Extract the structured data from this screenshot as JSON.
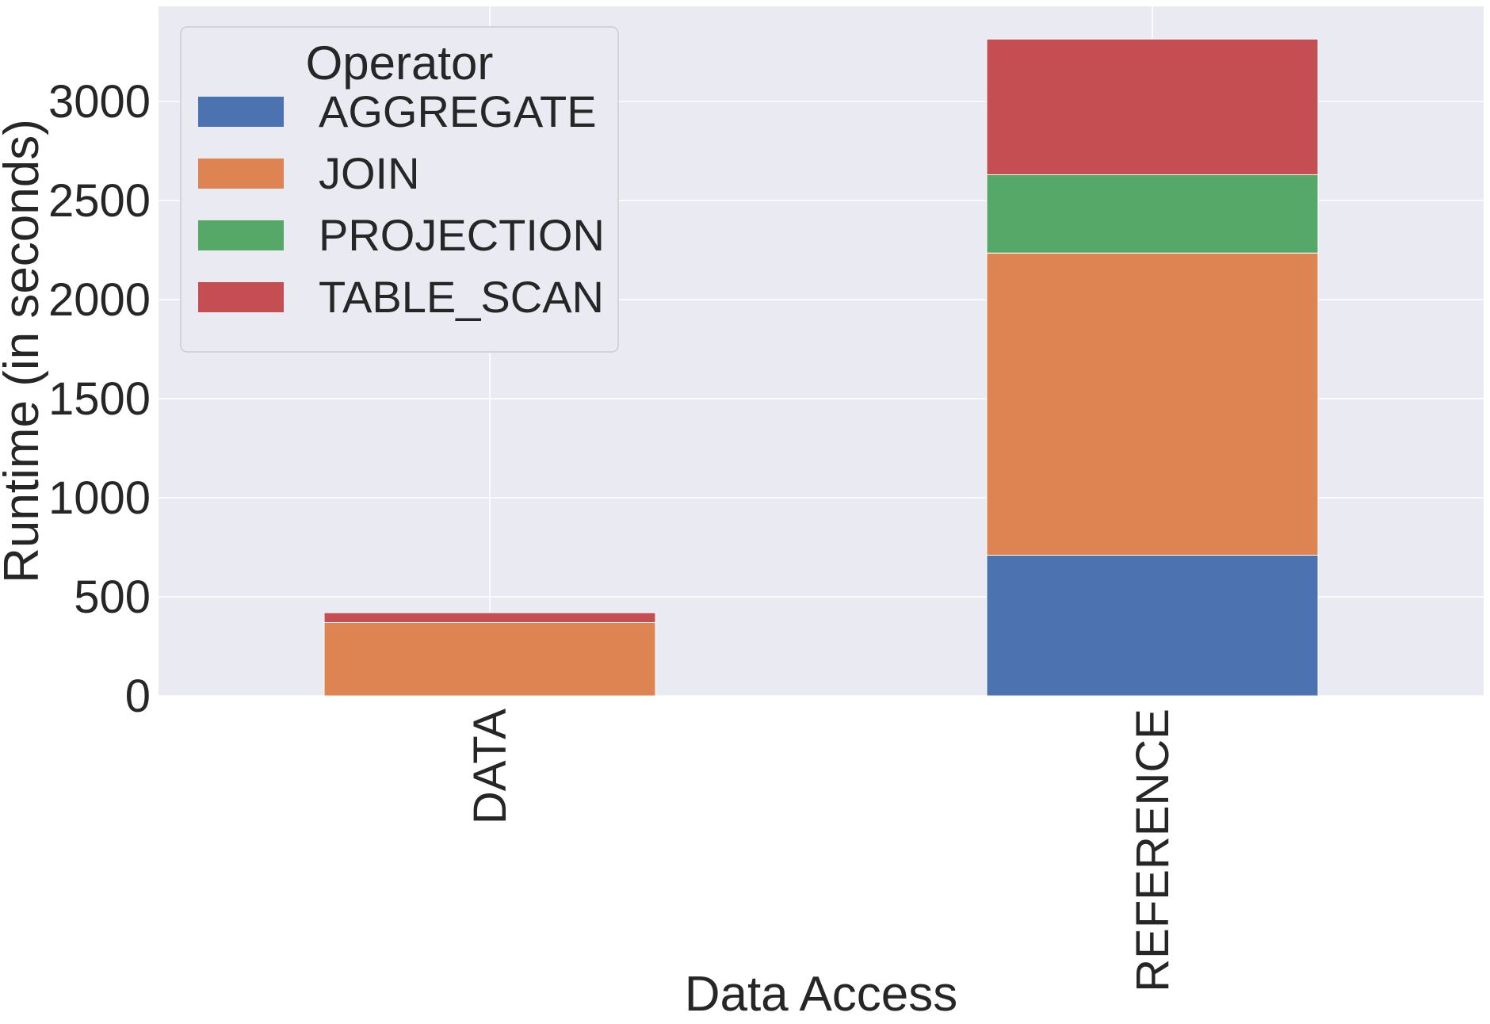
{
  "chart_data": {
    "type": "bar",
    "stacked": true,
    "categories": [
      "DATA",
      "REFERENCE"
    ],
    "series": [
      {
        "name": "AGGREGATE",
        "color": "#4c72b0",
        "values": [
          0,
          710
        ]
      },
      {
        "name": "JOIN",
        "color": "#dd8452",
        "values": [
          370,
          1525
        ]
      },
      {
        "name": "PROJECTION",
        "color": "#55a868",
        "values": [
          0,
          395
        ]
      },
      {
        "name": "TABLE_SCAN",
        "color": "#c44e52",
        "values": [
          50,
          685
        ]
      }
    ],
    "xlabel": "Data Access",
    "ylabel": "Runtime (in seconds)",
    "ylim": [
      0,
      3480
    ],
    "yticks": [
      0,
      500,
      1000,
      1500,
      2000,
      2500,
      3000
    ],
    "grid": true,
    "legend": {
      "title": "Operator",
      "placement": "top-left"
    },
    "background": "#eaeaf2"
  }
}
